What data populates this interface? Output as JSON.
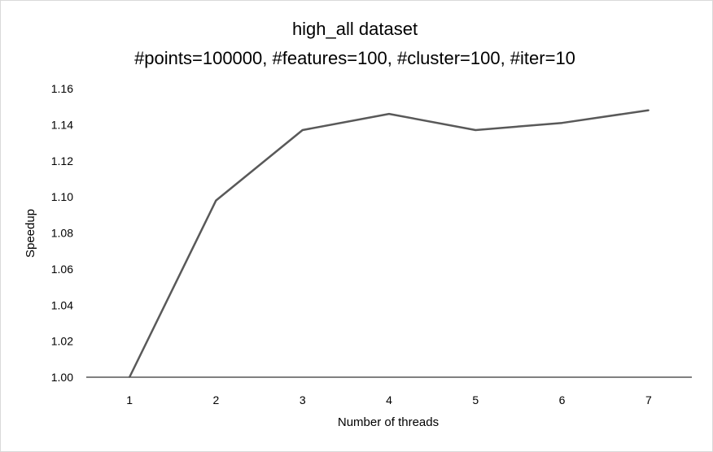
{
  "chart_data": {
    "type": "line",
    "title": "high_all dataset",
    "subtitle": "#points=100000, #features=100, #cluster=100, #iter=10",
    "xlabel": "Number of threads",
    "ylabel": "Speedup",
    "categories": [
      "1",
      "2",
      "3",
      "4",
      "5",
      "6",
      "7"
    ],
    "x": [
      1,
      2,
      3,
      4,
      5,
      6,
      7
    ],
    "series": [
      {
        "values": [
          1.0,
          1.098,
          1.137,
          1.146,
          1.137,
          1.141,
          1.148
        ],
        "color": "#595959"
      }
    ],
    "ylim": [
      1.0,
      1.16
    ],
    "yticks": [
      "1.00",
      "1.02",
      "1.04",
      "1.06",
      "1.08",
      "1.10",
      "1.12",
      "1.14",
      "1.16"
    ],
    "grid": false,
    "legend": "none"
  }
}
